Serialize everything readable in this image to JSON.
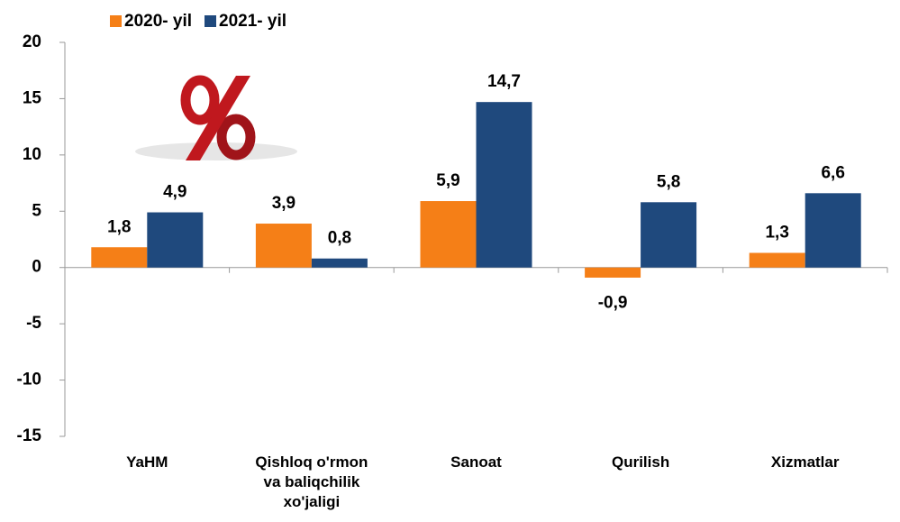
{
  "chart_data": {
    "type": "bar",
    "categories": [
      "YaHM",
      "Qishloq o'rmon va baliqchilik xo'jaligi",
      "Sanoat",
      "Qurilish",
      "Xizmatlar"
    ],
    "series": [
      {
        "name": "2020- yil",
        "color": "#f57f17",
        "values": [
          1.8,
          3.9,
          5.9,
          -0.9,
          1.3
        ],
        "value_labels": [
          "1,8",
          "3,9",
          "5,9",
          "-0,9",
          "1,3"
        ]
      },
      {
        "name": "2021- yil",
        "color": "#1f497d",
        "values": [
          4.9,
          0.8,
          14.7,
          5.8,
          6.6
        ],
        "value_labels": [
          "4,9",
          "0,8",
          "14,7",
          "5,8",
          "6,6"
        ]
      }
    ],
    "ylim": [
      -15,
      20
    ],
    "yticks": [
      -15,
      -10,
      -5,
      0,
      5,
      10,
      15,
      20
    ],
    "grid": false,
    "legend": "top",
    "negative_label_color": "#ff0000"
  }
}
